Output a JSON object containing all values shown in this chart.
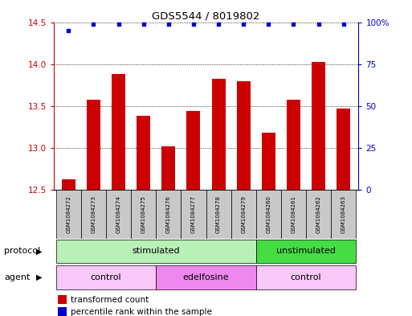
{
  "title": "GDS5544 / 8019802",
  "samples": [
    "GSM1084272",
    "GSM1084273",
    "GSM1084274",
    "GSM1084275",
    "GSM1084276",
    "GSM1084277",
    "GSM1084278",
    "GSM1084279",
    "GSM1084260",
    "GSM1084261",
    "GSM1084262",
    "GSM1084263"
  ],
  "red_values": [
    12.62,
    13.57,
    13.88,
    13.38,
    13.02,
    13.44,
    13.82,
    13.79,
    13.18,
    13.57,
    14.02,
    13.47
  ],
  "blue_values": [
    95,
    99,
    99,
    99,
    99,
    99,
    99,
    99,
    99,
    99,
    99,
    99
  ],
  "ylim_left": [
    12.5,
    14.5
  ],
  "ylim_right": [
    0,
    100
  ],
  "yticks_left": [
    12.5,
    13.0,
    13.5,
    14.0,
    14.5
  ],
  "yticks_right": [
    0,
    25,
    50,
    75,
    100
  ],
  "ytick_labels_right": [
    "0",
    "25",
    "50",
    "75",
    "100%"
  ],
  "protocol_groups": [
    {
      "label": "stimulated",
      "start": 0,
      "end": 8,
      "color": "#B8F0B8"
    },
    {
      "label": "unstimulated",
      "start": 8,
      "end": 12,
      "color": "#44DD44"
    }
  ],
  "agent_groups": [
    {
      "label": "control",
      "start": 0,
      "end": 4,
      "color": "#F8C8F8"
    },
    {
      "label": "edelfosine",
      "start": 4,
      "end": 8,
      "color": "#EE88EE"
    },
    {
      "label": "control",
      "start": 8,
      "end": 12,
      "color": "#F8C8F8"
    }
  ],
  "bar_color": "#CC0000",
  "dot_color": "#0000CC",
  "bar_width": 0.55,
  "grid_color": "#000000",
  "background_color": "#FFFFFF",
  "legend_red_label": "transformed count",
  "legend_blue_label": "percentile rank within the sample",
  "protocol_label": "protocol",
  "agent_label": "agent",
  "sample_box_color": "#C8C8C8"
}
